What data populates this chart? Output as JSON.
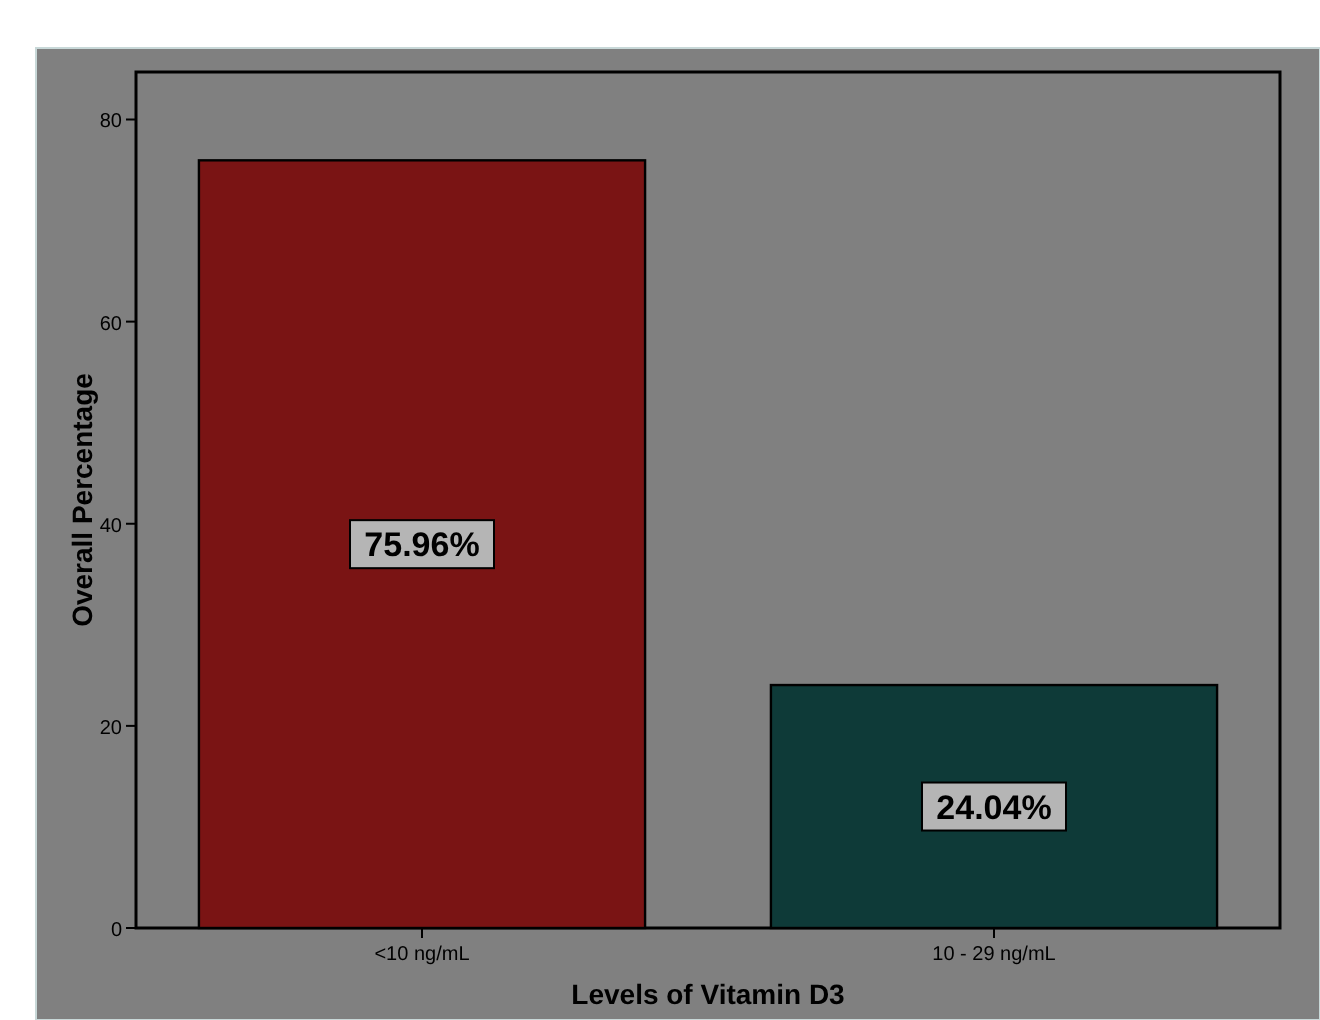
{
  "chart_data": {
    "type": "bar",
    "xlabel": "Levels of Vitamin D3",
    "ylabel": "Overall Percentage",
    "categories": [
      "<10 ng/mL",
      "10 - 29 ng/mL"
    ],
    "values": [
      75.96,
      24.04
    ],
    "colors": [
      "#7a1414",
      "#0e3a38"
    ],
    "value_labels": [
      "75.96%",
      "24.04%"
    ],
    "ylim": [
      0,
      84.7
    ],
    "yticks": [
      0,
      20,
      40,
      60,
      80
    ],
    "grid": false
  }
}
